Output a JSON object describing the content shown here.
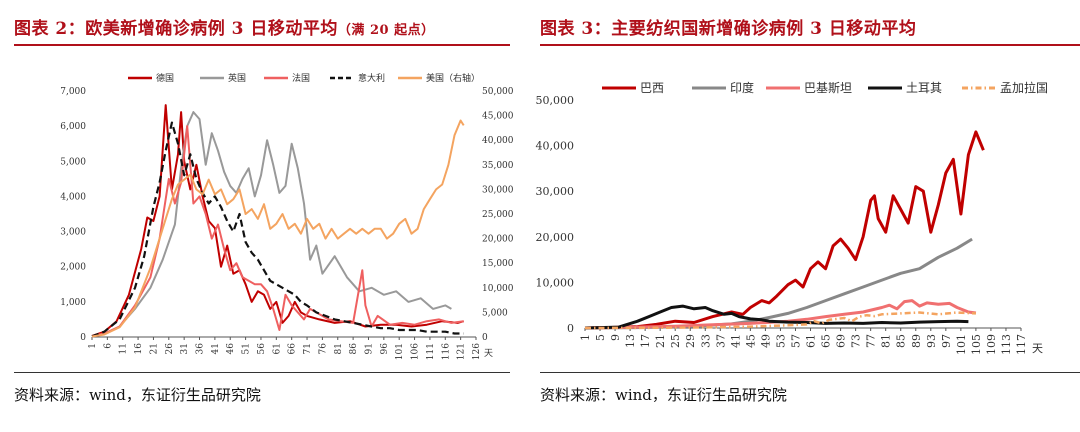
{
  "left": {
    "title": "图表 2：欧美新增确诊病例 3 日移动平均",
    "subtitle": "（满 20 起点）",
    "source": "资料来源：wind，东证衍生品研究院"
  },
  "right": {
    "title": "图表 3：主要纺织国新增确诊病例 3 日移动平均",
    "source": "资料来源：wind，东证衍生品研究院"
  },
  "chart_data": [
    {
      "type": "line",
      "xlabel": "天",
      "x_ticks": [
        "1",
        "6",
        "11",
        "16",
        "21",
        "26",
        "31",
        "36",
        "41",
        "46",
        "51",
        "56",
        "61",
        "66",
        "71",
        "76",
        "81",
        "86",
        "91",
        "96",
        "101",
        "106",
        "111",
        "116",
        "121",
        "126"
      ],
      "ylim": [
        0,
        7000
      ],
      "y2lim": [
        0,
        50000
      ],
      "y_ticks": [
        "0",
        "1,000",
        "2,000",
        "3,000",
        "4,000",
        "5,000",
        "6,000",
        "7,000"
      ],
      "y2_ticks": [
        "0",
        "5,000",
        "10,000",
        "15,000",
        "20,000",
        "25,000",
        "30,000",
        "35,000",
        "40,000",
        "45,000",
        "50,000"
      ],
      "series": [
        {
          "name": "德国",
          "color": "#c00000",
          "style": "solid",
          "axis": "left",
          "x": [
            1,
            5,
            9,
            13,
            17,
            19,
            21,
            23,
            25,
            27,
            29,
            30,
            31,
            33,
            35,
            37,
            39,
            41,
            43,
            45,
            47,
            49,
            51,
            53,
            55,
            57,
            59,
            61,
            63,
            65,
            67,
            69,
            71,
            75,
            80,
            85,
            90,
            95,
            100,
            105,
            110,
            115,
            120,
            122
          ],
          "y": [
            30,
            150,
            450,
            1200,
            2500,
            3400,
            3300,
            4000,
            6600,
            4200,
            5200,
            6400,
            5000,
            4200,
            4900,
            4000,
            3300,
            3100,
            2000,
            2600,
            1800,
            1900,
            1500,
            1000,
            1300,
            1200,
            800,
            1000,
            400,
            600,
            1000,
            700,
            600,
            500,
            400,
            450,
            300,
            350,
            350,
            300,
            350,
            450,
            400,
            450
          ]
        },
        {
          "name": "英国",
          "color": "#999999",
          "style": "solid",
          "axis": "left",
          "x": [
            1,
            5,
            10,
            15,
            20,
            24,
            28,
            30,
            32,
            34,
            36,
            38,
            40,
            42,
            44,
            46,
            48,
            50,
            52,
            54,
            56,
            58,
            60,
            62,
            64,
            66,
            68,
            70,
            72,
            74,
            76,
            80,
            84,
            88,
            92,
            96,
            100,
            104,
            108,
            112,
            116,
            118
          ],
          "y": [
            20,
            80,
            300,
            800,
            1400,
            2200,
            3200,
            4800,
            6000,
            6400,
            6200,
            4900,
            5800,
            5300,
            4700,
            4300,
            4100,
            4500,
            4800,
            4000,
            4600,
            5600,
            4900,
            4100,
            4300,
            5500,
            4800,
            3800,
            2200,
            2600,
            1800,
            2300,
            1700,
            1300,
            1400,
            1200,
            1300,
            1000,
            1100,
            800,
            900,
            800
          ]
        },
        {
          "name": "法国",
          "color": "#ef6060",
          "style": "solid",
          "axis": "left",
          "x": [
            1,
            5,
            10,
            15,
            20,
            23,
            26,
            28,
            30,
            32,
            34,
            36,
            38,
            40,
            42,
            44,
            46,
            48,
            50,
            52,
            54,
            56,
            58,
            60,
            62,
            64,
            66,
            68,
            70,
            72,
            74,
            78,
            82,
            86,
            89,
            90,
            92,
            94,
            98,
            102,
            106,
            110,
            114,
            118,
            122
          ],
          "y": [
            30,
            100,
            300,
            900,
            1700,
            2800,
            4500,
            3800,
            4400,
            6000,
            3800,
            4000,
            3500,
            2800,
            3200,
            2500,
            1900,
            2100,
            1700,
            1600,
            1500,
            1500,
            1300,
            800,
            200,
            1200,
            900,
            700,
            500,
            800,
            700,
            500,
            450,
            400,
            1900,
            900,
            300,
            600,
            350,
            400,
            350,
            450,
            500,
            400,
            450
          ]
        },
        {
          "name": "意大利",
          "color": "#111111",
          "style": "dashed",
          "axis": "left",
          "x": [
            1,
            5,
            10,
            15,
            18,
            21,
            23,
            25,
            27,
            29,
            31,
            33,
            35,
            37,
            39,
            41,
            43,
            45,
            47,
            49,
            51,
            53,
            55,
            57,
            59,
            61,
            63,
            65,
            67,
            69,
            71,
            74,
            77,
            80,
            83,
            86,
            89,
            92,
            95,
            98,
            101,
            104,
            107,
            110,
            113,
            116,
            119,
            122
          ],
          "y": [
            20,
            150,
            500,
            1400,
            2300,
            3700,
            4400,
            5300,
            6100,
            5500,
            4600,
            5200,
            4500,
            4100,
            3800,
            4000,
            3700,
            3300,
            3000,
            3500,
            2700,
            2400,
            2200,
            1900,
            1600,
            1500,
            1400,
            1300,
            1200,
            1000,
            900,
            700,
            600,
            500,
            450,
            400,
            350,
            300,
            250,
            250,
            200,
            200,
            200,
            150,
            150,
            150,
            100,
            100
          ]
        },
        {
          "name": "美国（右轴）",
          "color": "#f4a460",
          "style": "solid",
          "axis": "right",
          "x": [
            1,
            5,
            10,
            15,
            20,
            23,
            25,
            27,
            29,
            31,
            33,
            35,
            37,
            39,
            41,
            43,
            45,
            47,
            49,
            51,
            53,
            55,
            57,
            59,
            61,
            63,
            65,
            67,
            69,
            71,
            73,
            75,
            77,
            79,
            81,
            83,
            85,
            87,
            89,
            91,
            93,
            95,
            97,
            99,
            101,
            103,
            105,
            107,
            109,
            111,
            113,
            115,
            117,
            119,
            121,
            122
          ],
          "y": [
            100,
            500,
            2000,
            6000,
            14000,
            20000,
            24000,
            28000,
            31000,
            32000,
            33000,
            30000,
            29000,
            32000,
            29000,
            30000,
            27000,
            28000,
            30000,
            25000,
            26000,
            24000,
            27000,
            22000,
            23000,
            25000,
            22000,
            23000,
            21000,
            24000,
            22000,
            23000,
            20000,
            22000,
            20000,
            21000,
            22000,
            21000,
            22000,
            21000,
            22000,
            22000,
            20000,
            21000,
            23000,
            24000,
            21000,
            22000,
            26000,
            28000,
            30000,
            31000,
            35000,
            41000,
            44000,
            43000
          ]
        }
      ]
    },
    {
      "type": "line",
      "xlabel": "天",
      "x_ticks": [
        "1",
        "5",
        "9",
        "13",
        "17",
        "21",
        "25",
        "29",
        "33",
        "37",
        "41",
        "45",
        "49",
        "53",
        "57",
        "61",
        "65",
        "69",
        "73",
        "77",
        "81",
        "85",
        "89",
        "93",
        "97",
        "101",
        "105",
        "109",
        "113",
        "117"
      ],
      "ylim": [
        0,
        50000
      ],
      "y_ticks": [
        "0",
        "10,000",
        "20,000",
        "30,000",
        "40,000",
        "50,000"
      ],
      "series": [
        {
          "name": "巴西",
          "color": "#c00000",
          "style": "solid",
          "x": [
            1,
            8,
            15,
            20,
            25,
            30,
            35,
            40,
            43,
            45,
            48,
            50,
            52,
            55,
            57,
            59,
            61,
            63,
            65,
            67,
            69,
            71,
            73,
            75,
            77,
            78,
            79,
            81,
            83,
            85,
            87,
            89,
            91,
            93,
            95,
            97,
            99,
            101,
            103,
            105,
            107
          ],
          "y": [
            0,
            100,
            300,
            800,
            1500,
            1200,
            2500,
            3500,
            3000,
            4500,
            6000,
            5500,
            7000,
            9500,
            10500,
            9000,
            13000,
            14500,
            13000,
            18000,
            19500,
            17500,
            15000,
            20000,
            28000,
            29000,
            24000,
            21000,
            29000,
            26000,
            23000,
            31000,
            30000,
            21000,
            27000,
            34000,
            37000,
            25000,
            38000,
            43000,
            39000
          ]
        },
        {
          "name": "印度",
          "color": "#888888",
          "style": "solid",
          "x": [
            1,
            10,
            20,
            30,
            40,
            45,
            50,
            55,
            60,
            65,
            70,
            75,
            80,
            85,
            90,
            95,
            100,
            104
          ],
          "y": [
            0,
            50,
            150,
            400,
            900,
            1500,
            2300,
            3200,
            4500,
            6000,
            7500,
            9000,
            10500,
            12000,
            13000,
            15500,
            17500,
            19500
          ]
        },
        {
          "name": "巴基斯坦",
          "color": "#f07070",
          "style": "solid",
          "x": [
            1,
            15,
            25,
            35,
            45,
            55,
            60,
            65,
            70,
            75,
            80,
            82,
            84,
            86,
            88,
            90,
            92,
            95,
            98,
            100,
            103,
            105
          ],
          "y": [
            0,
            200,
            400,
            700,
            1000,
            1500,
            1900,
            2500,
            3000,
            3500,
            4500,
            5000,
            4200,
            5800,
            6000,
            4800,
            5500,
            5200,
            5400,
            4500,
            3500,
            3300
          ]
        },
        {
          "name": "土耳其",
          "color": "#111111",
          "style": "solid",
          "x": [
            1,
            10,
            15,
            18,
            21,
            24,
            27,
            30,
            33,
            35,
            38,
            40,
            42,
            45,
            48,
            50,
            55,
            60,
            65,
            70,
            75,
            80,
            85,
            90,
            95,
            100,
            103
          ],
          "y": [
            0,
            200,
            1500,
            2500,
            3500,
            4500,
            4800,
            4200,
            4500,
            3800,
            3000,
            3200,
            2500,
            2000,
            1800,
            1500,
            1300,
            1200,
            1000,
            1100,
            1000,
            1200,
            1100,
            1300,
            1400,
            1500,
            1400
          ]
        },
        {
          "name": "孟加拉国",
          "color": "#f4a460",
          "style": "dash-dot",
          "x": [
            1,
            20,
            35,
            45,
            55,
            60,
            62,
            64,
            66,
            68,
            70,
            72,
            74,
            76,
            78,
            80,
            85,
            90,
            95,
            100,
            105
          ],
          "y": [
            0,
            50,
            150,
            300,
            600,
            800,
            1500,
            1000,
            1800,
            2000,
            2200,
            1500,
            2500,
            2800,
            2600,
            3000,
            3200,
            3400,
            3000,
            3400,
            3200
          ]
        }
      ]
    }
  ]
}
